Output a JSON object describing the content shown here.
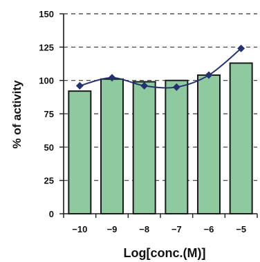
{
  "chart_data": {
    "type": "bar",
    "title": "",
    "xlabel": "Log[conc.(M)]",
    "ylabel": "% of activity",
    "categories": [
      "-10",
      "-9",
      "-8",
      "-7",
      "-6",
      "-5"
    ],
    "series": [
      {
        "type": "bar",
        "values": [
          92,
          101,
          99,
          100,
          104,
          113
        ]
      },
      {
        "type": "line",
        "values": [
          96,
          102,
          96,
          95,
          104,
          124
        ]
      }
    ],
    "ylim": [
      0,
      150
    ],
    "yticks": [
      0,
      25,
      50,
      75,
      100,
      125,
      150
    ],
    "grid": "horizontal dashed",
    "colors": {
      "bar_fill": "#8fc9a0",
      "bar_stroke": "#1a1a1a",
      "line": "#24336e",
      "marker": "#24336e",
      "axis": "#1a1a1a"
    }
  }
}
